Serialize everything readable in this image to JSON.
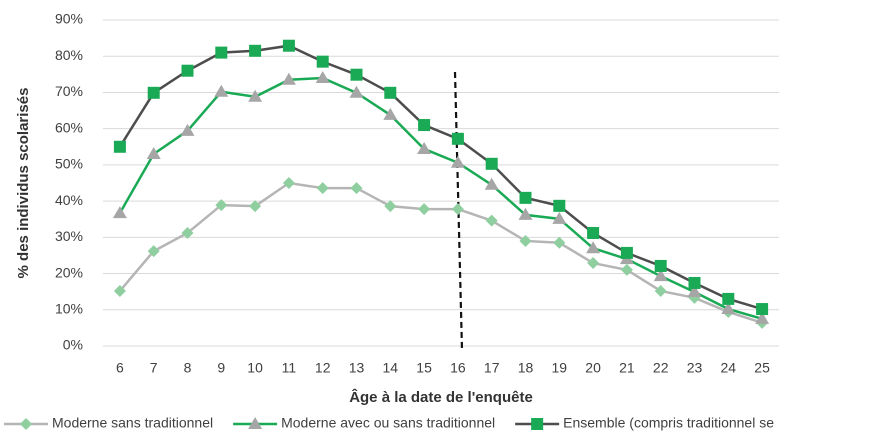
{
  "chart_data": {
    "type": "line",
    "x_label": "Âge à la date de l'enquête",
    "y_label": "% des individus scolarisés",
    "categories": [
      "6",
      "7",
      "8",
      "9",
      "10",
      "11",
      "12",
      "13",
      "14",
      "15",
      "16",
      "17",
      "18",
      "19",
      "20",
      "21",
      "22",
      "23",
      "24",
      "25"
    ],
    "ylim": [
      0,
      90
    ],
    "yticks": [
      {
        "value": 0,
        "label": "0%"
      },
      {
        "value": 10,
        "label": "10%"
      },
      {
        "value": 20,
        "label": "20%"
      },
      {
        "value": 30,
        "label": "30%"
      },
      {
        "value": 40,
        "label": "40%"
      },
      {
        "value": 50,
        "label": "50%"
      },
      {
        "value": 60,
        "label": "60%"
      },
      {
        "value": 70,
        "label": "70%"
      },
      {
        "value": 80,
        "label": "80%"
      },
      {
        "value": 90,
        "label": "90%"
      }
    ],
    "grid": true,
    "legend": "bottom",
    "series": [
      {
        "name": "Moderne sans traditionnel",
        "color": "#8fcf9f",
        "line_color": "#b5b5b5",
        "marker": "diamond",
        "values": [
          15.2,
          26.2,
          31.2,
          38.9,
          38.6,
          45,
          43.6,
          43.6,
          38.6,
          37.8,
          37.8,
          34.6,
          29,
          28.5,
          22.9,
          21,
          15.2,
          13.3,
          9.4,
          6.4
        ]
      },
      {
        "name": "Moderne avec ou sans traditionnel",
        "color": "#a6a6a6",
        "line_color": "#1aaa55",
        "marker": "triangle",
        "values": [
          36.7,
          53,
          59.4,
          70.2,
          68.8,
          73.5,
          74,
          69.9,
          63.8,
          54.4,
          50.6,
          44.5,
          36.2,
          35.1,
          27,
          24,
          19.3,
          14.9,
          10.2,
          7.5
        ]
      },
      {
        "name": "Ensemble (compris traditionnel se",
        "color": "#1aaa55",
        "line_color": "#4d4d4d",
        "marker": "square",
        "values": [
          55,
          69.9,
          76,
          81,
          81.5,
          82.9,
          78.5,
          74.9,
          69.9,
          61,
          57.2,
          50.3,
          40.9,
          38.7,
          31.2,
          25.7,
          22.1,
          17.4,
          13,
          10.2
        ]
      }
    ]
  }
}
